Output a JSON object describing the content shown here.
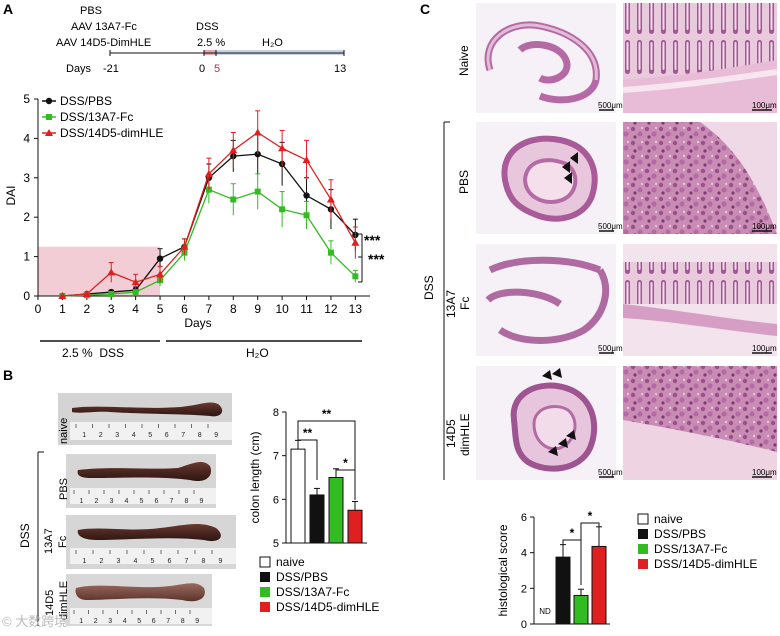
{
  "panel_labels": {
    "a": "A",
    "b": "B",
    "c": "C"
  },
  "timeline": {
    "left_lines": [
      "PBS",
      "AAV 13A7-Fc",
      "AAV 14D5-DimHLE"
    ],
    "dss_label": "DSS",
    "dss_conc": "2.5 %",
    "water_label": "H₂O",
    "days_label": "Days",
    "day_ticks": [
      "-21",
      "0",
      "5",
      "13"
    ]
  },
  "treatment_bar": {
    "dss": "2.5 %  DSS",
    "water": "H₂O"
  },
  "colon_images": {
    "rows": [
      "naive",
      "PBS",
      "13A7\nFc",
      "14D5\ndimHLE"
    ],
    "group_label": "DSS",
    "ruler_numbers": [
      "1",
      "2",
      "3",
      "4",
      "5",
      "6",
      "7",
      "8",
      "9"
    ]
  },
  "legend_b": [
    "naive",
    "DSS/PBS",
    "DSS/13A7-Fc",
    "DSS/14D5-dimHLE"
  ],
  "histology": {
    "rows": [
      "Naive",
      "PBS",
      "13A7\nFc",
      "14D5\ndimHLE"
    ],
    "group_label": "DSS",
    "scale_left": "500μm",
    "scale_right": "100μm"
  },
  "legend_c": [
    "naive",
    "DSS/PBS",
    "DSS/13A7-Fc",
    "DSS/14D5-dimHLE"
  ],
  "watermark": "© 大数跨境",
  "colors": {
    "pbs": "#111111",
    "fc": "#33bb22",
    "dim": "#e02020",
    "shade": "#f3cdd6",
    "naive_fill": "#ffffff",
    "timeline_water": "#c9d3e6"
  },
  "chart_data": [
    {
      "type": "line",
      "panel": "A",
      "xlabel": "Days",
      "ylabel": "DAI",
      "x": [
        1,
        2,
        3,
        4,
        5,
        6,
        7,
        8,
        9,
        10,
        11,
        12,
        13
      ],
      "x_ticks": [
        "0",
        "1",
        "2",
        "3",
        "4",
        "5",
        "6",
        "7",
        "8",
        "9",
        "10",
        "11",
        "12",
        "13"
      ],
      "y_ticks": [
        "0",
        "1",
        "2",
        "3",
        "4",
        "5"
      ],
      "xlim": [
        0,
        13.6
      ],
      "ylim": [
        0,
        5
      ],
      "shaded_region": {
        "x": [
          0,
          5
        ],
        "y": [
          0,
          1.25
        ]
      },
      "series": [
        {
          "name": "DSS/PBS",
          "marker": "circle",
          "values": [
            0,
            0.05,
            0.1,
            0.15,
            0.95,
            1.25,
            3.0,
            3.55,
            3.6,
            3.35,
            2.55,
            2.2,
            1.55
          ],
          "errors": [
            0,
            0.03,
            0.05,
            0.08,
            0.25,
            0.2,
            0.35,
            0.4,
            0.5,
            0.55,
            0.45,
            0.5,
            0.4
          ]
        },
        {
          "name": "DSS/13A7-Fc",
          "marker": "square",
          "values": [
            0,
            0.02,
            0.05,
            0.1,
            0.4,
            1.1,
            2.7,
            2.45,
            2.65,
            2.2,
            2.05,
            1.1,
            0.5
          ],
          "errors": [
            0,
            0.02,
            0.04,
            0.06,
            0.15,
            0.2,
            0.35,
            0.4,
            0.45,
            0.45,
            0.35,
            0.3,
            0.15
          ]
        },
        {
          "name": "DSS/14D5-dimHLE",
          "marker": "triangle",
          "values": [
            0,
            0.05,
            0.6,
            0.35,
            0.55,
            1.25,
            3.1,
            3.7,
            4.15,
            3.75,
            3.45,
            2.45,
            1.35
          ],
          "errors": [
            0,
            0.05,
            0.25,
            0.2,
            0.2,
            0.2,
            0.4,
            0.45,
            0.55,
            0.45,
            0.5,
            0.5,
            0.4
          ]
        }
      ],
      "annotations": [
        "***",
        "***"
      ]
    },
    {
      "type": "bar",
      "panel": "B",
      "ylabel": "colon length (cm)",
      "categories": [
        "naive",
        "DSS/PBS",
        "DSS/13A7-Fc",
        "DSS/14D5-dimHLE"
      ],
      "values": [
        7.15,
        6.1,
        6.5,
        5.75
      ],
      "errors": [
        0.2,
        0.15,
        0.2,
        0.2
      ],
      "y_ticks": [
        "5",
        "6",
        "7",
        "8"
      ],
      "ylim": [
        5,
        8
      ],
      "significance": [
        "**",
        "**",
        "*"
      ]
    },
    {
      "type": "bar",
      "panel": "C",
      "ylabel": "histological score",
      "categories": [
        "naive",
        "DSS/PBS",
        "DSS/13A7-Fc",
        "DSS/14D5-dimHLE"
      ],
      "values": [
        0,
        3.75,
        1.6,
        4.35
      ],
      "errors": [
        0,
        0.7,
        0.35,
        1.1
      ],
      "y_ticks": [
        "0",
        "2",
        "4",
        "6"
      ],
      "ylim": [
        0,
        6
      ],
      "nd_label": "ND",
      "significance": [
        "*",
        "*"
      ]
    }
  ]
}
